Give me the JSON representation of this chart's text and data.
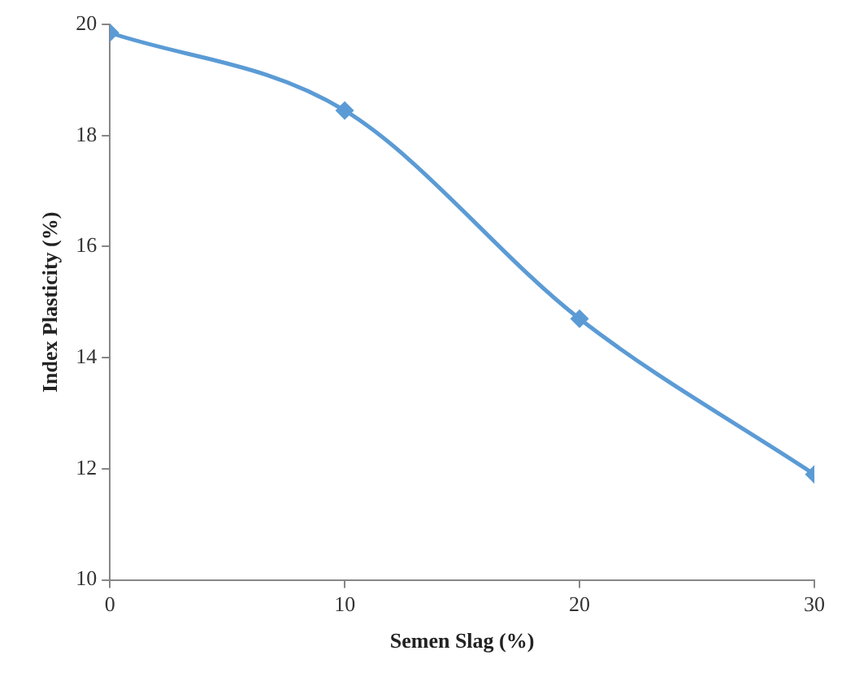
{
  "chart_data": {
    "type": "line",
    "xlabel": "Semen Slag (%)",
    "ylabel": "Index Plasticity (%)",
    "x": [
      0,
      10,
      20,
      30
    ],
    "series": [
      {
        "color": "#5b9bd5",
        "values": [
          19.85,
          18.45,
          14.7,
          11.9
        ]
      }
    ],
    "xlim": [
      0,
      30
    ],
    "xticks": [
      0,
      10,
      20,
      30
    ],
    "ylim": [
      10,
      20
    ],
    "yticks": [
      10,
      12,
      14,
      16,
      18,
      20
    ],
    "grid": false,
    "legend": false,
    "marker": "diamond",
    "line_style": "solid"
  }
}
